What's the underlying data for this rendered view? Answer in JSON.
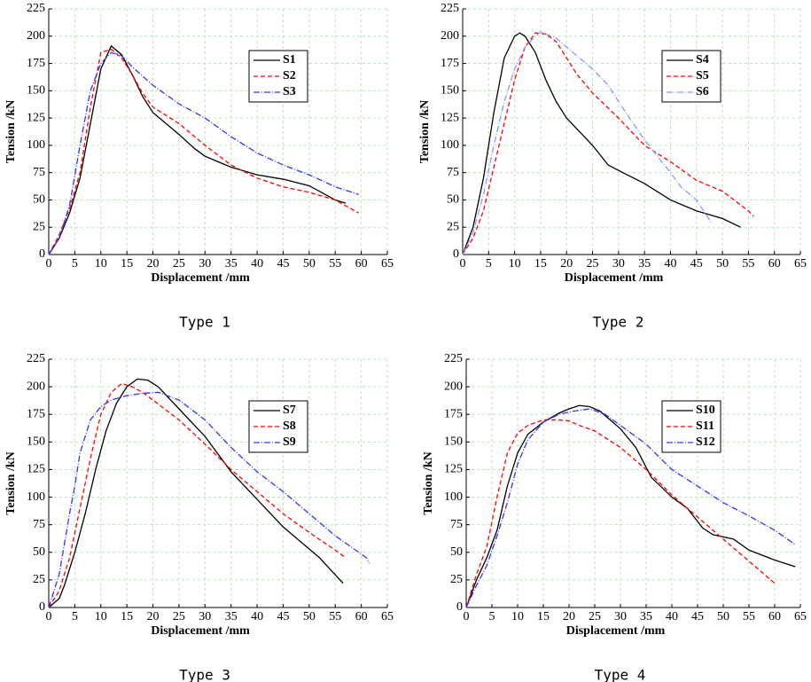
{
  "chart_data": [
    {
      "type": "line",
      "caption": "Type 1",
      "xlabel": "Displacement /mm",
      "ylabel": "Tension /kN",
      "xlim": [
        0,
        65
      ],
      "ylim": [
        0,
        225
      ],
      "xticks": [
        0,
        5,
        10,
        15,
        20,
        25,
        30,
        35,
        40,
        45,
        50,
        55,
        60,
        65
      ],
      "yticks": [
        0,
        25,
        50,
        75,
        100,
        125,
        150,
        175,
        200,
        225
      ],
      "grid": true,
      "legend": "upper right",
      "series": [
        {
          "name": "S1",
          "color": "#000000",
          "style": "solid",
          "x": [
            0,
            2,
            4,
            6,
            8,
            10,
            12,
            14,
            16,
            18,
            20,
            22,
            25,
            28,
            30,
            35,
            40,
            45,
            50,
            55,
            57
          ],
          "values": [
            0,
            15,
            38,
            70,
            120,
            170,
            191,
            183,
            165,
            145,
            130,
            122,
            110,
            97,
            90,
            80,
            73,
            69,
            63,
            50,
            47
          ]
        },
        {
          "name": "S2",
          "color": "#ff0000",
          "style": "dashed",
          "x": [
            0,
            2,
            4,
            6,
            8,
            10,
            12,
            14,
            16,
            18,
            20,
            25,
            30,
            35,
            40,
            45,
            50,
            55,
            59.5
          ],
          "values": [
            0,
            18,
            42,
            75,
            135,
            185,
            188,
            180,
            165,
            148,
            135,
            120,
            100,
            82,
            70,
            62,
            57,
            50,
            38
          ]
        },
        {
          "name": "S3",
          "color": "#3333ff",
          "style": "dashdot",
          "x": [
            0,
            2,
            4,
            6,
            8,
            10,
            12,
            14,
            16,
            20,
            25,
            30,
            35,
            40,
            45,
            50,
            55,
            59.5
          ],
          "values": [
            0,
            15,
            45,
            100,
            150,
            175,
            185,
            182,
            172,
            155,
            138,
            125,
            108,
            93,
            82,
            73,
            62,
            55
          ]
        }
      ]
    },
    {
      "type": "line",
      "caption": "Type 2",
      "xlabel": "Displacement /mm",
      "ylabel": "Tension /kN",
      "xlim": [
        0,
        65
      ],
      "ylim": [
        0,
        225
      ],
      "xticks": [
        0,
        5,
        10,
        15,
        20,
        25,
        30,
        35,
        40,
        45,
        50,
        55,
        60,
        65
      ],
      "yticks": [
        0,
        25,
        50,
        75,
        100,
        125,
        150,
        175,
        200,
        225
      ],
      "grid": true,
      "legend": "upper right",
      "series": [
        {
          "name": "S4",
          "color": "#000000",
          "style": "solid",
          "x": [
            0,
            2,
            4,
            6,
            8,
            10,
            11,
            12,
            14,
            16,
            18,
            20,
            22,
            25,
            28,
            30,
            35,
            40,
            45,
            50,
            53.5
          ],
          "values": [
            0,
            25,
            70,
            130,
            180,
            200,
            203,
            200,
            185,
            160,
            140,
            125,
            115,
            100,
            82,
            77,
            65,
            50,
            40,
            33,
            25
          ]
        },
        {
          "name": "S5",
          "color": "#ff0000",
          "style": "dashed",
          "x": [
            0,
            2,
            4,
            6,
            8,
            10,
            12,
            14,
            16,
            18,
            20,
            22,
            25,
            30,
            35,
            40,
            45,
            50,
            55,
            56
          ],
          "values": [
            0,
            15,
            40,
            80,
            120,
            160,
            190,
            203,
            202,
            195,
            180,
            165,
            148,
            125,
            100,
            85,
            68,
            58,
            40,
            35
          ]
        },
        {
          "name": "S6",
          "color": "#8899ff",
          "style": "dashdot",
          "x": [
            0,
            2,
            4,
            6,
            8,
            10,
            12,
            14,
            15,
            18,
            20,
            25,
            28,
            30,
            35,
            40,
            42,
            45,
            48
          ],
          "values": [
            0,
            20,
            55,
            100,
            140,
            170,
            190,
            200,
            204,
            198,
            190,
            170,
            155,
            140,
            105,
            75,
            62,
            50,
            28
          ]
        }
      ]
    },
    {
      "type": "line",
      "caption": "Type 3",
      "xlabel": "Displacement /mm",
      "ylabel": "Tension /kN",
      "xlim": [
        0,
        65
      ],
      "ylim": [
        0,
        225
      ],
      "xticks": [
        0,
        5,
        10,
        15,
        20,
        25,
        30,
        35,
        40,
        45,
        50,
        55,
        60,
        65
      ],
      "yticks": [
        0,
        25,
        50,
        75,
        100,
        125,
        150,
        175,
        200,
        225
      ],
      "grid": true,
      "legend": "upper right",
      "series": [
        {
          "name": "S7",
          "color": "#000000",
          "style": "solid",
          "x": [
            0,
            2,
            3,
            5,
            7,
            9,
            11,
            13,
            15,
            17,
            19,
            21,
            25,
            30,
            35,
            40,
            45,
            50,
            52,
            56.5
          ],
          "values": [
            0,
            8,
            20,
            50,
            85,
            125,
            160,
            185,
            200,
            207,
            206,
            200,
            180,
            155,
            123,
            98,
            73,
            53,
            45,
            22
          ]
        },
        {
          "name": "S8",
          "color": "#ff0000",
          "style": "dashed",
          "x": [
            0,
            2,
            4,
            6,
            8,
            10,
            12,
            14,
            16,
            18,
            20,
            25,
            30,
            35,
            40,
            45,
            50,
            55,
            57
          ],
          "values": [
            0,
            15,
            45,
            90,
            135,
            175,
            195,
            203,
            200,
            195,
            188,
            170,
            148,
            125,
            105,
            85,
            68,
            52,
            45
          ]
        },
        {
          "name": "S9",
          "color": "#3333ff",
          "style": "dashdot",
          "x": [
            0,
            2,
            4,
            5,
            6,
            8,
            10,
            12,
            15,
            18,
            21,
            25,
            30,
            35,
            40,
            45,
            50,
            55,
            58,
            61,
            61.5
          ],
          "values": [
            0,
            30,
            85,
            110,
            140,
            170,
            182,
            188,
            192,
            194,
            195,
            188,
            170,
            145,
            123,
            105,
            85,
            65,
            55,
            45,
            40
          ]
        }
      ]
    },
    {
      "type": "line",
      "caption": "Type 4",
      "xlabel": "Displacement /mm",
      "ylabel": "Tension /kN",
      "xlim": [
        0,
        65
      ],
      "ylim": [
        0,
        225
      ],
      "xticks": [
        0,
        5,
        10,
        15,
        20,
        25,
        30,
        35,
        40,
        45,
        50,
        55,
        60,
        65
      ],
      "yticks": [
        0,
        25,
        50,
        75,
        100,
        125,
        150,
        175,
        200,
        225
      ],
      "grid": true,
      "legend": "upper right",
      "series": [
        {
          "name": "S10",
          "color": "#000000",
          "style": "solid",
          "x": [
            0,
            2,
            4,
            6,
            8,
            10,
            12,
            15,
            18,
            20,
            22,
            24,
            26,
            30,
            33,
            36,
            40,
            43,
            46,
            48,
            50,
            52,
            55,
            60,
            64
          ],
          "values": [
            0,
            25,
            45,
            70,
            110,
            140,
            157,
            168,
            176,
            180,
            183,
            182,
            178,
            162,
            145,
            118,
            100,
            90,
            72,
            66,
            64,
            62,
            52,
            43,
            37
          ]
        },
        {
          "name": "S11",
          "color": "#ff0000",
          "style": "dashed",
          "x": [
            0,
            2,
            4,
            6,
            8,
            10,
            12,
            15,
            18,
            20,
            22,
            25,
            30,
            35,
            40,
            45,
            50,
            55,
            60
          ],
          "values": [
            0,
            30,
            55,
            100,
            140,
            158,
            165,
            170,
            170,
            169,
            165,
            160,
            145,
            125,
            102,
            82,
            62,
            42,
            22
          ]
        },
        {
          "name": "S12",
          "color": "#3333ff",
          "style": "dashdot",
          "x": [
            0,
            2,
            4,
            6,
            8,
            10,
            12,
            15,
            18,
            21,
            24,
            27,
            30,
            35,
            40,
            45,
            50,
            55,
            60,
            64
          ],
          "values": [
            0,
            20,
            38,
            65,
            95,
            130,
            152,
            168,
            175,
            178,
            180,
            175,
            165,
            148,
            125,
            110,
            95,
            83,
            70,
            57
          ]
        }
      ]
    }
  ]
}
